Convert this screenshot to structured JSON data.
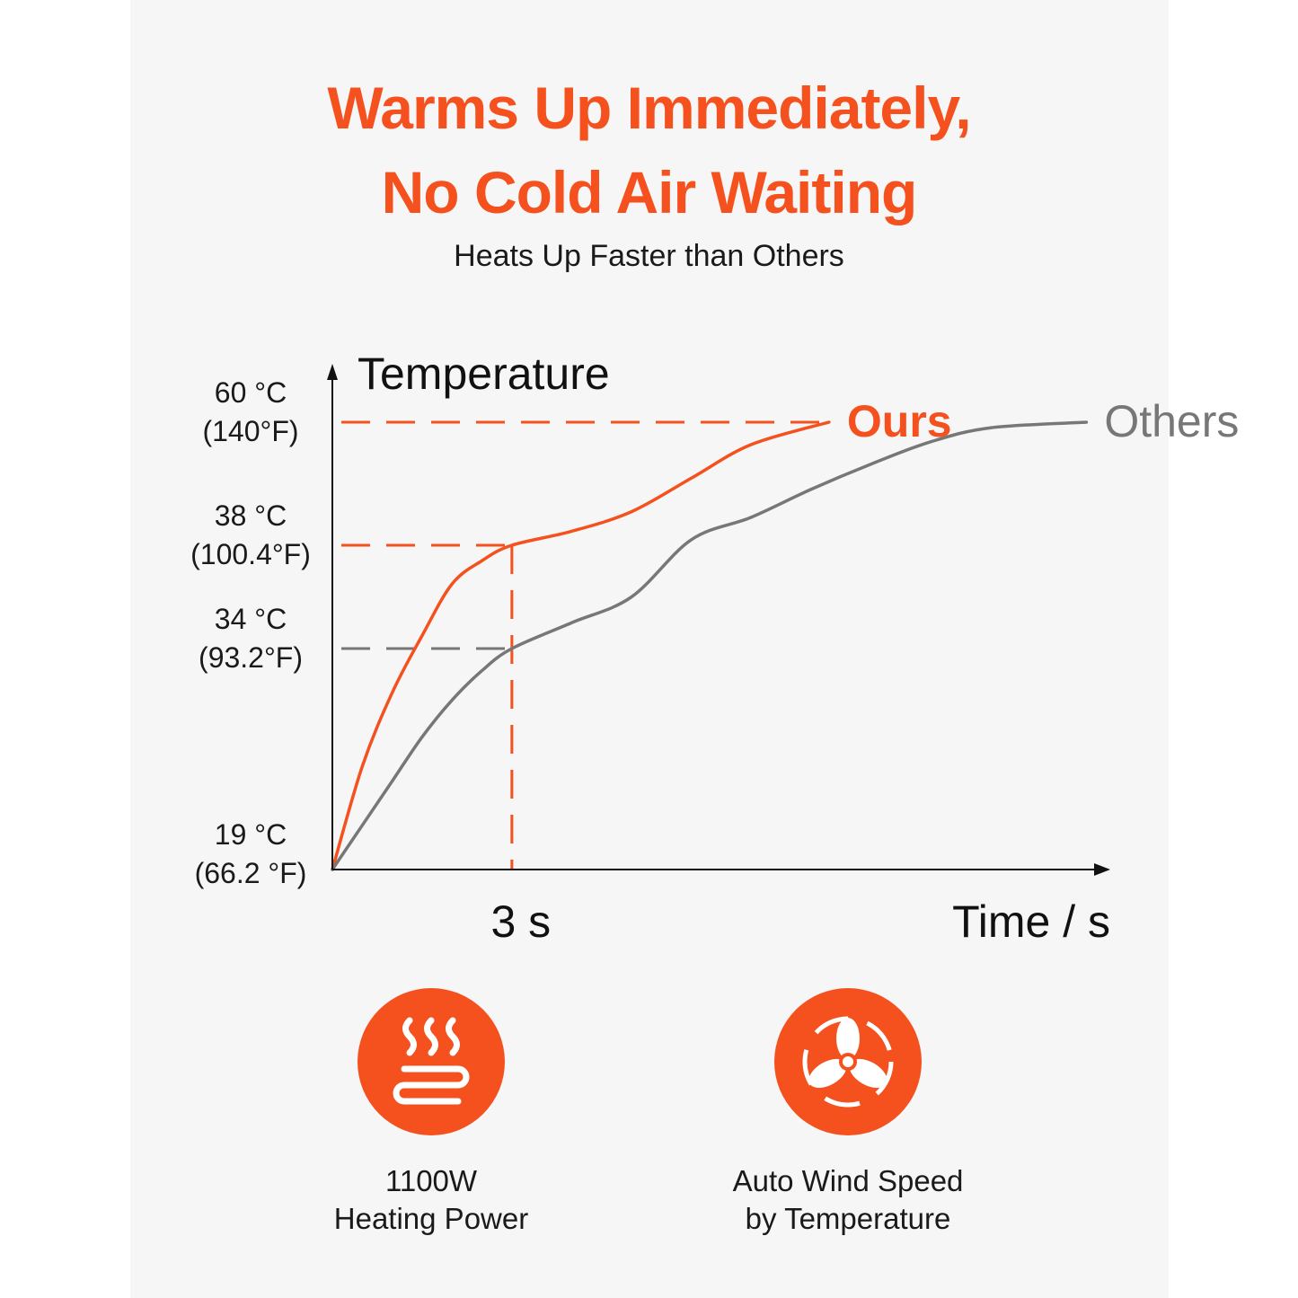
{
  "header": {
    "title_line1": "Warms Up Immediately,",
    "title_line2": "No Cold Air Waiting",
    "subtitle": "Heats Up Faster than Others"
  },
  "colors": {
    "accent": "#f4511e",
    "others": "#777777",
    "background": "#f6f6f6"
  },
  "chart_data": {
    "type": "line",
    "ylabel": "Temperature",
    "xlabel": "Time / s",
    "y_ticks": [
      {
        "value": 19,
        "c": "19 °C",
        "f": "(66.2 °F)"
      },
      {
        "value": 34,
        "c": "34 °C",
        "f": "(93.2°F)"
      },
      {
        "value": 38,
        "c": "38 °C",
        "f": "(100.4°F)"
      },
      {
        "value": 60,
        "c": "60 °C",
        "f": "(140°F)"
      }
    ],
    "x_ticks": [
      {
        "value": 3,
        "label": "3 s"
      }
    ],
    "xlim": [
      0,
      13
    ],
    "series": [
      {
        "name": "Ours",
        "color": "#f4511e",
        "x": [
          0,
          0.5,
          1,
          1.5,
          2,
          2.5,
          3,
          4,
          5,
          6,
          7,
          8.3
        ],
        "y": [
          19,
          26,
          31,
          34.5,
          36.5,
          37.4,
          38,
          40.5,
          44,
          50,
          56,
          60
        ]
      },
      {
        "name": "Others",
        "color": "#777777",
        "x": [
          0,
          0.5,
          1,
          1.5,
          2,
          2.5,
          3,
          4,
          5,
          6,
          7,
          8,
          9,
          10,
          11,
          12.6
        ],
        "y": [
          19,
          22,
          25,
          28,
          30.5,
          32.5,
          34,
          35,
          36,
          39,
          43,
          48,
          52.5,
          56.5,
          59,
          60
        ]
      }
    ],
    "reference_lines": [
      {
        "y": 60,
        "x_to": 8.3,
        "color": "#f4511e"
      },
      {
        "y": 38,
        "x_to": 3,
        "color": "#f4511e"
      },
      {
        "y": 34,
        "x_to": 3,
        "color": "#777777"
      },
      {
        "x": 3,
        "y_to": 38,
        "color": "#f4511e"
      }
    ]
  },
  "features": [
    {
      "icon": "heat-waves-icon",
      "line1": "1100W",
      "line2": "Heating Power"
    },
    {
      "icon": "fan-icon",
      "line1": "Auto Wind Speed",
      "line2": "by Temperature"
    }
  ]
}
